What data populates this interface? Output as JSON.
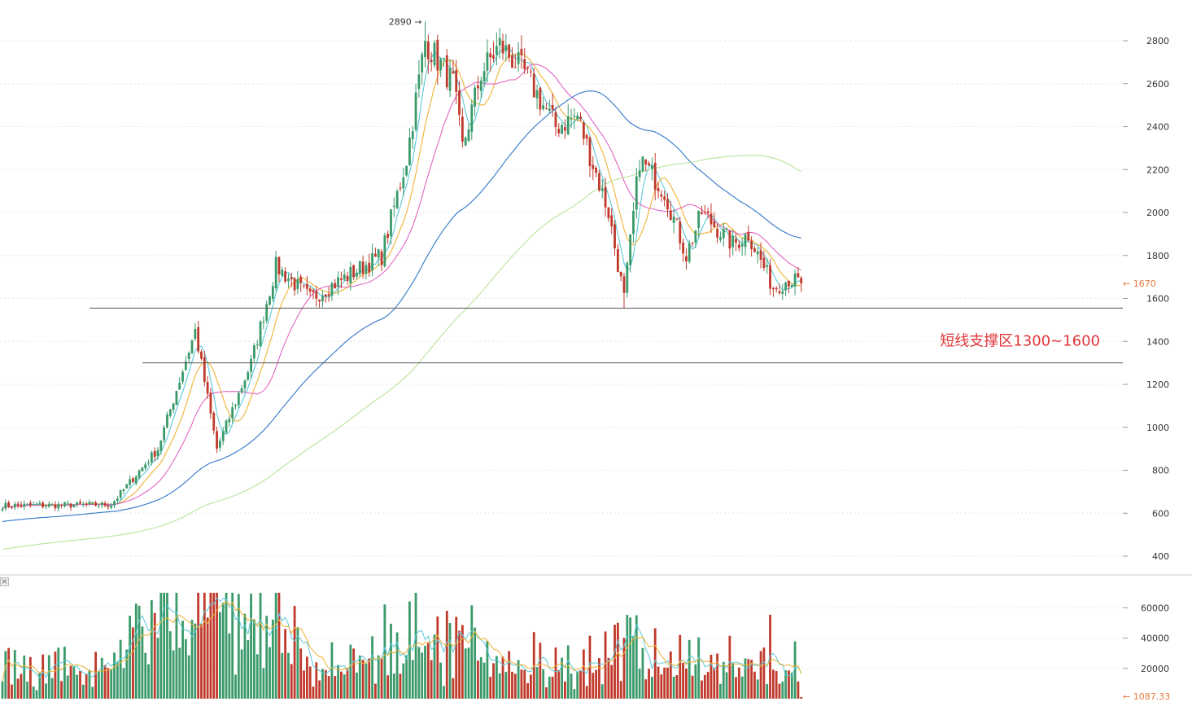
{
  "chart_data": [
    {
      "type": "candlestick",
      "panel": "price",
      "y_ticks": [
        "400",
        "600",
        "800",
        "1000",
        "1200",
        "1400",
        "1600",
        "1800",
        "2000",
        "2200",
        "2400",
        "2600",
        "2800"
      ],
      "ylim": [
        360,
        2900
      ],
      "peak_label": "2890",
      "last_price_label": "1670",
      "support_lines": [
        1555,
        1300
      ],
      "annotation": "短线支撑区1300~1600",
      "colors": {
        "up": "#3a9a6a",
        "down": "#c0392b",
        "ma5": "#5bc8d8",
        "ma10": "#f2b233",
        "ma20": "#e067c4",
        "ma60": "#2f76c9",
        "ma120": "#b8e39a",
        "support": "#555555",
        "annotation": "#e0363a",
        "price_tag": "#e8783c"
      },
      "key_points": [
        {
          "bar": 0,
          "close": 635
        },
        {
          "bar": 35,
          "close": 640
        },
        {
          "bar": 50,
          "close": 900
        },
        {
          "bar": 62,
          "close": 1450
        },
        {
          "bar": 69,
          "close": 900
        },
        {
          "bar": 80,
          "close": 1300
        },
        {
          "bar": 88,
          "close": 1750
        },
        {
          "bar": 99,
          "close": 1600
        },
        {
          "bar": 122,
          "close": 1800
        },
        {
          "bar": 130,
          "close": 2250
        },
        {
          "bar": 136,
          "close": 2800
        },
        {
          "bar": 145,
          "close": 2600
        },
        {
          "bar": 148,
          "close": 2300
        },
        {
          "bar": 154,
          "close": 2650
        },
        {
          "bar": 160,
          "close": 2780
        },
        {
          "bar": 168,
          "close": 2650
        },
        {
          "bar": 178,
          "close": 2400
        },
        {
          "bar": 185,
          "close": 2450
        },
        {
          "bar": 195,
          "close": 2000
        },
        {
          "bar": 200,
          "close": 1600
        },
        {
          "bar": 205,
          "close": 2250
        },
        {
          "bar": 213,
          "close": 2100
        },
        {
          "bar": 220,
          "close": 1800
        },
        {
          "bar": 225,
          "close": 2000
        },
        {
          "bar": 235,
          "close": 1850
        },
        {
          "bar": 240,
          "close": 1900
        },
        {
          "bar": 248,
          "close": 1650
        },
        {
          "bar": 253,
          "close": 1690
        },
        {
          "bar": 257,
          "close": 1670
        }
      ]
    },
    {
      "type": "bar",
      "panel": "volume",
      "y_ticks": [
        "20000",
        "40000",
        "60000"
      ],
      "ylim": [
        0,
        72000
      ],
      "last_volume_label": "1087.33"
    }
  ]
}
